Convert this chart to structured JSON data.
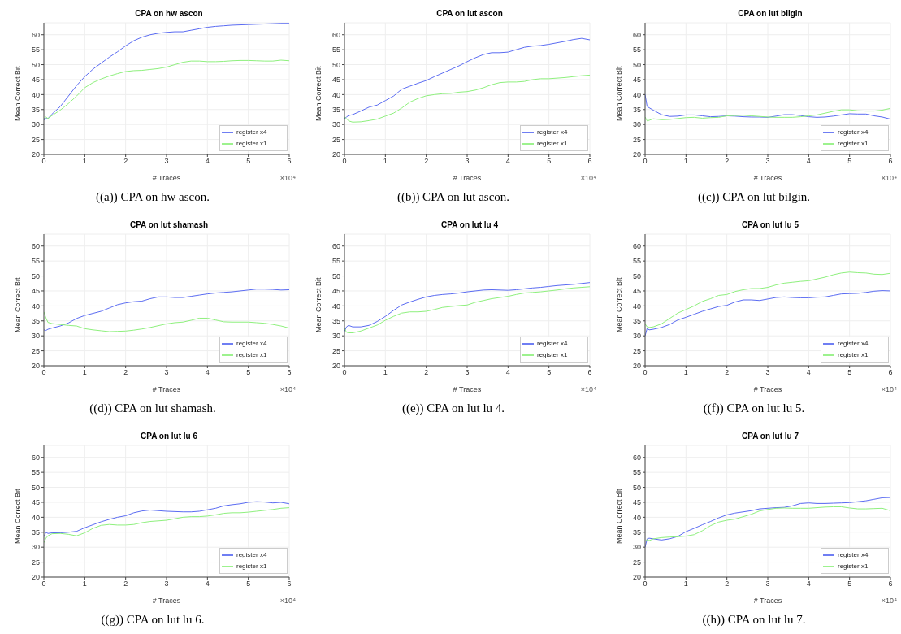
{
  "chart_data": [
    {
      "type": "line",
      "title": "CPA on hw ascon",
      "xlabel": "# Traces",
      "ylabel": "Mean Correct Bit",
      "annotations": [
        "×10⁴",
        "((a)) CPA on hw ascon."
      ],
      "xlim": [
        0,
        6
      ],
      "ylim": [
        20,
        64
      ],
      "xticks": [
        0,
        1,
        2,
        3,
        4,
        5,
        6
      ],
      "yticks": [
        20,
        25,
        30,
        35,
        40,
        45,
        50,
        55,
        60
      ],
      "grid": true,
      "legend": "bottom right",
      "x": [
        0,
        0.05,
        0.1,
        0.2,
        0.4,
        0.6,
        0.8,
        1,
        1.2,
        1.4,
        1.6,
        1.8,
        2,
        2.2,
        2.4,
        2.6,
        2.8,
        3,
        3.2,
        3.4,
        3.6,
        3.8,
        4,
        4.2,
        4.4,
        4.6,
        4.8,
        5,
        5.2,
        5.4,
        5.6,
        5.8,
        6
      ],
      "series": [
        {
          "name": "register x4",
          "color": "#5b6cf2",
          "values": [
            31.5,
            32,
            32,
            33.5,
            36,
            39.5,
            43,
            46,
            48.5,
            50.5,
            52.5,
            54.3,
            56.3,
            58,
            59.2,
            60,
            60.5,
            60.8,
            61,
            61,
            61.5,
            62,
            62.5,
            62.8,
            63,
            63.2,
            63.3,
            63.4,
            63.5,
            63.6,
            63.7,
            63.8,
            63.8
          ]
        },
        {
          "name": "register x1",
          "color": "#8ff07e",
          "values": [
            32,
            32.5,
            32,
            33,
            34.8,
            37,
            39.5,
            42.3,
            44,
            45.2,
            46.2,
            47,
            47.7,
            48,
            48.1,
            48.4,
            48.7,
            49.2,
            50,
            50.8,
            51.2,
            51.2,
            51,
            51,
            51.1,
            51.3,
            51.4,
            51.4,
            51.3,
            51.2,
            51.2,
            51.5,
            51.3
          ]
        }
      ]
    },
    {
      "type": "line",
      "title": "CPA on lut ascon",
      "xlabel": "# Traces",
      "ylabel": "Mean Correct Bit",
      "annotations": [
        "×10⁴",
        "((b)) CPA on lut ascon."
      ],
      "xlim": [
        0,
        6
      ],
      "ylim": [
        20,
        64
      ],
      "xticks": [
        0,
        1,
        2,
        3,
        4,
        5,
        6
      ],
      "yticks": [
        20,
        25,
        30,
        35,
        40,
        45,
        50,
        55,
        60
      ],
      "grid": true,
      "legend": "bottom right",
      "x": [
        0,
        0.05,
        0.1,
        0.2,
        0.4,
        0.6,
        0.8,
        1,
        1.2,
        1.4,
        1.6,
        1.8,
        2,
        2.2,
        2.4,
        2.6,
        2.8,
        3,
        3.2,
        3.4,
        3.6,
        3.8,
        4,
        4.2,
        4.4,
        4.6,
        4.8,
        5,
        5.2,
        5.4,
        5.6,
        5.8,
        6
      ],
      "series": [
        {
          "name": "register x4",
          "color": "#5b6cf2",
          "values": [
            32,
            32.5,
            33,
            33.3,
            34.5,
            35.8,
            36.5,
            38,
            39.5,
            41.8,
            42.8,
            43.8,
            44.7,
            46,
            47.2,
            48.4,
            49.6,
            51,
            52.3,
            53.4,
            54,
            54,
            54.2,
            55,
            55.8,
            56.2,
            56.4,
            56.8,
            57.3,
            57.8,
            58.4,
            58.8,
            58.3
          ]
        },
        {
          "name": "register x1",
          "color": "#8ff07e",
          "values": [
            32.5,
            32,
            31.2,
            30.8,
            30.9,
            31.3,
            31.8,
            32.8,
            33.8,
            35.5,
            37.5,
            38.7,
            39.6,
            40,
            40.3,
            40.4,
            40.8,
            41,
            41.5,
            42.3,
            43.3,
            44,
            44.2,
            44.2,
            44.4,
            45,
            45.3,
            45.3,
            45.5,
            45.7,
            46,
            46.3,
            46.5
          ]
        }
      ]
    },
    {
      "type": "line",
      "title": "CPA on lut bilgin",
      "xlabel": "# Traces",
      "ylabel": "Mean Correct Bit",
      "annotations": [
        "×10⁴",
        "((c)) CPA on lut bilgin."
      ],
      "xlim": [
        0,
        6
      ],
      "ylim": [
        20,
        64
      ],
      "xticks": [
        0,
        1,
        2,
        3,
        4,
        5,
        6
      ],
      "yticks": [
        20,
        25,
        30,
        35,
        40,
        45,
        50,
        55,
        60
      ],
      "grid": true,
      "legend": "bottom right",
      "x": [
        0,
        0.05,
        0.1,
        0.2,
        0.4,
        0.6,
        0.8,
        1,
        1.2,
        1.4,
        1.6,
        1.8,
        2,
        2.2,
        2.4,
        2.6,
        2.8,
        3,
        3.2,
        3.4,
        3.6,
        3.8,
        4,
        4.2,
        4.4,
        4.6,
        4.8,
        5,
        5.2,
        5.4,
        5.6,
        5.8,
        6
      ],
      "series": [
        {
          "name": "register x4",
          "color": "#5b6cf2",
          "values": [
            40,
            36,
            35.6,
            34.8,
            33.3,
            32.7,
            32.8,
            33.2,
            33.2,
            32.9,
            32.6,
            32.7,
            32.9,
            32.8,
            32.6,
            32.5,
            32.5,
            32.4,
            32.8,
            33.3,
            33.3,
            33,
            32.6,
            32.4,
            32.5,
            32.8,
            33.2,
            33.6,
            33.5,
            33.5,
            32.9,
            32.5,
            31.8
          ]
        },
        {
          "name": "register x1",
          "color": "#8ff07e",
          "values": [
            32.5,
            31.2,
            31.4,
            31.9,
            31.6,
            31.7,
            32,
            32.3,
            32.4,
            32.1,
            32.3,
            32.4,
            32.9,
            33,
            33.1,
            32.9,
            32.7,
            32.5,
            32.4,
            32.4,
            32.4,
            32.6,
            32.9,
            33.2,
            33.8,
            34.4,
            34.9,
            34.9,
            34.6,
            34.5,
            34.5,
            34.8,
            35.4
          ]
        }
      ]
    },
    {
      "type": "line",
      "title": "CPA on lut shamash",
      "xlabel": "# Traces",
      "ylabel": "Mean Correct Bit",
      "annotations": [
        "×10⁴",
        "((d)) CPA on lut shamash."
      ],
      "xlim": [
        0,
        6
      ],
      "ylim": [
        20,
        64
      ],
      "xticks": [
        0,
        1,
        2,
        3,
        4,
        5,
        6
      ],
      "yticks": [
        20,
        25,
        30,
        35,
        40,
        45,
        50,
        55,
        60
      ],
      "grid": true,
      "legend": "bottom right",
      "x": [
        0,
        0.05,
        0.1,
        0.2,
        0.4,
        0.6,
        0.8,
        1,
        1.2,
        1.4,
        1.6,
        1.8,
        2,
        2.2,
        2.4,
        2.6,
        2.8,
        3,
        3.2,
        3.4,
        3.6,
        3.8,
        4,
        4.2,
        4.4,
        4.6,
        4.8,
        5,
        5.2,
        5.4,
        5.6,
        5.8,
        6
      ],
      "series": [
        {
          "name": "register x4",
          "color": "#5b6cf2",
          "values": [
            32,
            31.8,
            32.2,
            32.6,
            33.3,
            34.3,
            35.8,
            36.8,
            37.5,
            38.2,
            39.3,
            40.4,
            41,
            41.4,
            41.6,
            42.4,
            43,
            43,
            42.8,
            42.8,
            43.2,
            43.6,
            44,
            44.3,
            44.5,
            44.7,
            45,
            45.3,
            45.6,
            45.6,
            45.5,
            45.3,
            45.4
          ]
        },
        {
          "name": "register x1",
          "color": "#8ff07e",
          "values": [
            38,
            36,
            34.5,
            34.1,
            33.8,
            33.5,
            33.3,
            32.4,
            32,
            31.7,
            31.4,
            31.5,
            31.6,
            31.9,
            32.3,
            32.8,
            33.4,
            34,
            34.4,
            34.6,
            35.2,
            35.9,
            35.9,
            35.3,
            34.7,
            34.6,
            34.6,
            34.6,
            34.4,
            34.2,
            33.8,
            33.3,
            32.6
          ]
        }
      ]
    },
    {
      "type": "line",
      "title": "CPA on lut lu 4",
      "xlabel": "# Traces",
      "ylabel": "Mean Correct Bit",
      "annotations": [
        "×10⁴",
        "((e)) CPA on lut lu 4."
      ],
      "xlim": [
        0,
        6
      ],
      "ylim": [
        20,
        64
      ],
      "xticks": [
        0,
        1,
        2,
        3,
        4,
        5,
        6
      ],
      "yticks": [
        20,
        25,
        30,
        35,
        40,
        45,
        50,
        55,
        60
      ],
      "grid": true,
      "legend": "bottom right",
      "x": [
        0,
        0.05,
        0.1,
        0.2,
        0.4,
        0.6,
        0.8,
        1,
        1.2,
        1.4,
        1.6,
        1.8,
        2,
        2.2,
        2.4,
        2.6,
        2.8,
        3,
        3.2,
        3.4,
        3.6,
        3.8,
        4,
        4.2,
        4.4,
        4.6,
        4.8,
        5,
        5.2,
        5.4,
        5.6,
        5.8,
        6
      ],
      "series": [
        {
          "name": "register x4",
          "color": "#5b6cf2",
          "values": [
            31.5,
            33,
            33.5,
            33,
            33,
            33.5,
            34.8,
            36.5,
            38.5,
            40.3,
            41.3,
            42.2,
            43,
            43.5,
            43.8,
            44,
            44.3,
            44.7,
            45,
            45.3,
            45.4,
            45.3,
            45.2,
            45.4,
            45.7,
            46,
            46.2,
            46.5,
            46.8,
            47,
            47.2,
            47.5,
            47.8
          ]
        },
        {
          "name": "register x1",
          "color": "#8ff07e",
          "values": [
            32.5,
            31.2,
            31,
            31,
            31.6,
            32.6,
            33.6,
            35.2,
            36.5,
            37.6,
            38,
            38,
            38.2,
            38.8,
            39.5,
            39.8,
            40.1,
            40.3,
            41.2,
            41.8,
            42.4,
            42.8,
            43.2,
            43.8,
            44.3,
            44.5,
            44.7,
            45,
            45.3,
            45.7,
            46,
            46.2,
            46.4
          ]
        }
      ]
    },
    {
      "type": "line",
      "title": "CPA on lut lu 5",
      "xlabel": "# Traces",
      "ylabel": "Mean Correct Bit",
      "annotations": [
        "×10⁴",
        "((f)) CPA on lut lu 5."
      ],
      "xlim": [
        0,
        6
      ],
      "ylim": [
        20,
        64
      ],
      "xticks": [
        0,
        1,
        2,
        3,
        4,
        5,
        6
      ],
      "yticks": [
        20,
        25,
        30,
        35,
        40,
        45,
        50,
        55,
        60
      ],
      "grid": true,
      "legend": "bottom right",
      "x": [
        0,
        0.05,
        0.1,
        0.2,
        0.4,
        0.6,
        0.8,
        1,
        1.2,
        1.4,
        1.6,
        1.8,
        2,
        2.2,
        2.4,
        2.6,
        2.8,
        3,
        3.2,
        3.4,
        3.6,
        3.8,
        4,
        4.2,
        4.4,
        4.6,
        4.8,
        5,
        5.2,
        5.4,
        5.6,
        5.8,
        6
      ],
      "series": [
        {
          "name": "register x4",
          "color": "#5b6cf2",
          "values": [
            30,
            32.5,
            32,
            32.2,
            32.8,
            33.8,
            35.3,
            36.2,
            37.2,
            38.2,
            39,
            39.8,
            40.2,
            41.3,
            42,
            42,
            41.8,
            42.3,
            42.8,
            43,
            42.8,
            42.7,
            42.7,
            42.9,
            43,
            43.5,
            44,
            44.1,
            44.2,
            44.5,
            44.9,
            45.1,
            45
          ]
        },
        {
          "name": "register x1",
          "color": "#8ff07e",
          "values": [
            34,
            33,
            32.8,
            33,
            34,
            35.8,
            37.6,
            38.8,
            40,
            41.5,
            42.4,
            43.5,
            43.8,
            44.8,
            45.4,
            45.8,
            45.8,
            46.2,
            47,
            47.6,
            47.9,
            48.2,
            48.4,
            49,
            49.6,
            50.4,
            51,
            51.3,
            51.1,
            51,
            50.6,
            50.5,
            50.9
          ]
        }
      ]
    },
    {
      "type": "line",
      "title": "CPA on lut lu 6",
      "xlabel": "# Traces",
      "ylabel": "Mean Correct Bit",
      "annotations": [
        "×10⁴",
        "((g)) CPA on lut lu 6."
      ],
      "xlim": [
        0,
        6
      ],
      "ylim": [
        20,
        64
      ],
      "xticks": [
        0,
        1,
        2,
        3,
        4,
        5,
        6
      ],
      "yticks": [
        20,
        25,
        30,
        35,
        40,
        45,
        50,
        55,
        60
      ],
      "grid": true,
      "legend": "bottom right",
      "x": [
        0,
        0.05,
        0.1,
        0.2,
        0.4,
        0.6,
        0.8,
        1,
        1.2,
        1.4,
        1.6,
        1.8,
        2,
        2.2,
        2.4,
        2.6,
        2.8,
        3,
        3.2,
        3.4,
        3.6,
        3.8,
        4,
        4.2,
        4.4,
        4.6,
        4.8,
        5,
        5.2,
        5.4,
        5.6,
        5.8,
        6
      ],
      "series": [
        {
          "name": "register x4",
          "color": "#5b6cf2",
          "values": [
            33.5,
            35,
            34.6,
            34.8,
            34.8,
            35,
            35.3,
            36.5,
            37.5,
            38.5,
            39.3,
            40,
            40.5,
            41.5,
            42.1,
            42.4,
            42.2,
            42,
            41.9,
            41.8,
            41.8,
            42,
            42.5,
            43,
            43.8,
            44.2,
            44.5,
            45,
            45.2,
            45.1,
            44.8,
            45,
            44.5
          ]
        },
        {
          "name": "register x1",
          "color": "#8ff07e",
          "values": [
            31.5,
            33,
            33.8,
            34.5,
            34.6,
            34.3,
            33.8,
            34.8,
            36.3,
            37.3,
            37.6,
            37.4,
            37.4,
            37.6,
            38.2,
            38.6,
            38.8,
            39,
            39.5,
            40,
            40.2,
            40.2,
            40.4,
            40.8,
            41.3,
            41.5,
            41.5,
            41.7,
            42,
            42.3,
            42.6,
            43,
            43.2
          ]
        }
      ]
    },
    {
      "type": "line",
      "title": "CPA on lut lu 7",
      "xlabel": "# Traces",
      "ylabel": "Mean Correct Bit",
      "annotations": [
        "×10⁴",
        "((h)) CPA on lut lu 7."
      ],
      "xlim": [
        0,
        6
      ],
      "ylim": [
        20,
        64
      ],
      "xticks": [
        0,
        1,
        2,
        3,
        4,
        5,
        6
      ],
      "yticks": [
        20,
        25,
        30,
        35,
        40,
        45,
        50,
        55,
        60
      ],
      "grid": true,
      "legend": "bottom right",
      "x": [
        0,
        0.05,
        0.1,
        0.2,
        0.4,
        0.6,
        0.8,
        1,
        1.2,
        1.4,
        1.6,
        1.8,
        2,
        2.2,
        2.4,
        2.6,
        2.8,
        3,
        3.2,
        3.4,
        3.6,
        3.8,
        4,
        4.2,
        4.4,
        4.6,
        4.8,
        5,
        5.2,
        5.4,
        5.6,
        5.8,
        6
      ],
      "series": [
        {
          "name": "register x4",
          "color": "#5b6cf2",
          "values": [
            30,
            32.8,
            33,
            32.8,
            32.4,
            32.8,
            33.6,
            35.2,
            36.3,
            37.5,
            38.6,
            39.8,
            40.8,
            41.4,
            41.8,
            42.2,
            42.8,
            43,
            43.2,
            43.3,
            43.8,
            44.6,
            44.8,
            44.6,
            44.6,
            44.7,
            44.8,
            44.9,
            45.2,
            45.5,
            46,
            46.5,
            46.6
          ]
        },
        {
          "name": "register x1",
          "color": "#8ff07e",
          "values": [
            32,
            32.5,
            32.2,
            32.8,
            33.2,
            33.4,
            33.5,
            33.7,
            34.2,
            35.5,
            37.2,
            38.4,
            39,
            39.4,
            40.2,
            41,
            42.1,
            42.6,
            43,
            43.1,
            43,
            43,
            43,
            43.2,
            43.4,
            43.5,
            43.5,
            43.1,
            42.8,
            42.8,
            42.9,
            43,
            42.2
          ]
        }
      ]
    }
  ]
}
